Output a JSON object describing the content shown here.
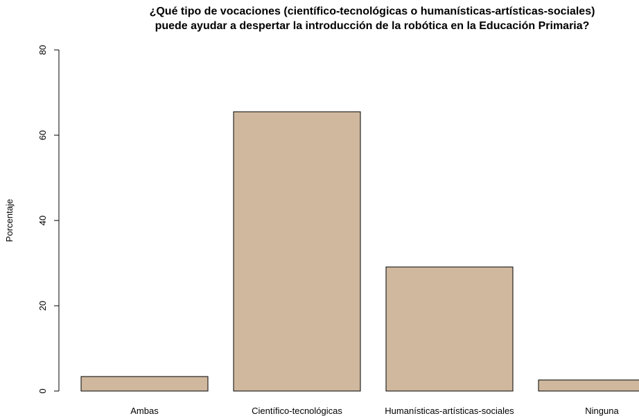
{
  "chart_data": {
    "type": "bar",
    "title": [
      "¿Qué tipo de vocaciones (científico-tecnológicas o humanísticas-artísticas-sociales)",
      "puede ayudar a despertar la introducción de la robótica en la Educación Primaria?"
    ],
    "ylabel": "Porcentaje",
    "categories": [
      "Ambas",
      "Científico-tecnológicas",
      "Humanísticas-artísticas-sociales",
      "Ninguna"
    ],
    "values": [
      3.4,
      65.5,
      29.1,
      2.6
    ],
    "color": "#cfb89e",
    "ylim": [
      0,
      80
    ],
    "yticks": [
      0,
      20,
      40,
      60,
      80
    ],
    "grid": false
  }
}
